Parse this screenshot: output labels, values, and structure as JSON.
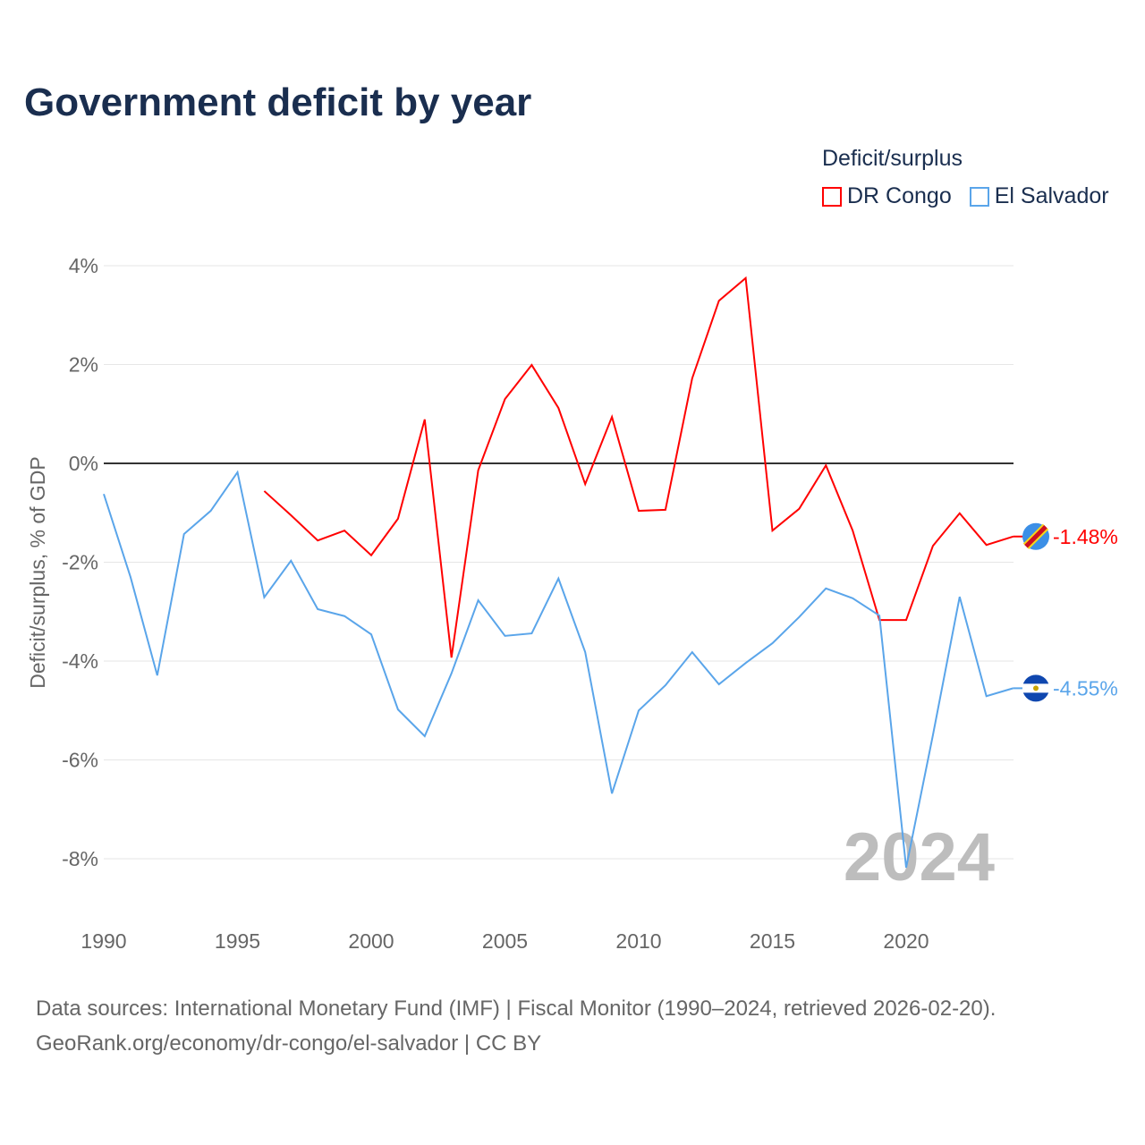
{
  "chart_data": {
    "type": "line",
    "title": "Government deficit by year",
    "ylabel": "Deficit/surplus, % of GDP",
    "xlabel": "",
    "legend_title": "Deficit/surplus",
    "legend_position": "top-right",
    "watermark_year": "2024",
    "xlim": [
      1990,
      2024
    ],
    "ylim": [
      -9,
      4
    ],
    "x_ticks": [
      1990,
      1995,
      2000,
      2005,
      2010,
      2015,
      2020
    ],
    "y_ticks": [
      4,
      2,
      0,
      -2,
      -4,
      -6,
      -8
    ],
    "y_tick_labels": [
      "4%",
      "2%",
      "0%",
      "-2%",
      "-4%",
      "-6%",
      "-8%"
    ],
    "series": [
      {
        "name": "DR Congo",
        "color": "#ff0000",
        "start_year": 1996,
        "values": [
          -0.56,
          -1.05,
          -1.56,
          -1.36,
          -1.86,
          -1.12,
          0.89,
          -3.93,
          -0.14,
          1.3,
          1.99,
          1.12,
          -0.42,
          0.94,
          -0.96,
          -0.94,
          1.72,
          3.29,
          3.75,
          -1.36,
          -0.92,
          -0.04,
          -1.36,
          -3.17,
          -3.17,
          -1.67,
          -1.01,
          -1.65,
          -1.48
        ],
        "end_label": "-1.48%"
      },
      {
        "name": "El Salvador",
        "color": "#5aa5ea",
        "start_year": 1990,
        "values": [
          -0.62,
          -2.3,
          -4.29,
          -1.43,
          -0.96,
          -0.18,
          -2.71,
          -1.97,
          -2.95,
          -3.09,
          -3.46,
          -4.98,
          -5.52,
          -4.25,
          -2.77,
          -3.49,
          -3.44,
          -2.33,
          -3.82,
          -6.68,
          -5.0,
          -4.49,
          -3.82,
          -4.47,
          -4.04,
          -3.64,
          -3.11,
          -2.53,
          -2.73,
          -3.08,
          -8.18,
          -5.5,
          -2.7,
          -4.71,
          -4.55
        ],
        "end_label": "-4.55%"
      }
    ]
  },
  "source": {
    "line1": "Data sources: International Monetary Fund (IMF) | Fiscal Monitor (1990–2024, retrieved 2026-02-20).",
    "line2": "GeoRank.org/economy/dr-congo/el-salvador | CC BY"
  }
}
